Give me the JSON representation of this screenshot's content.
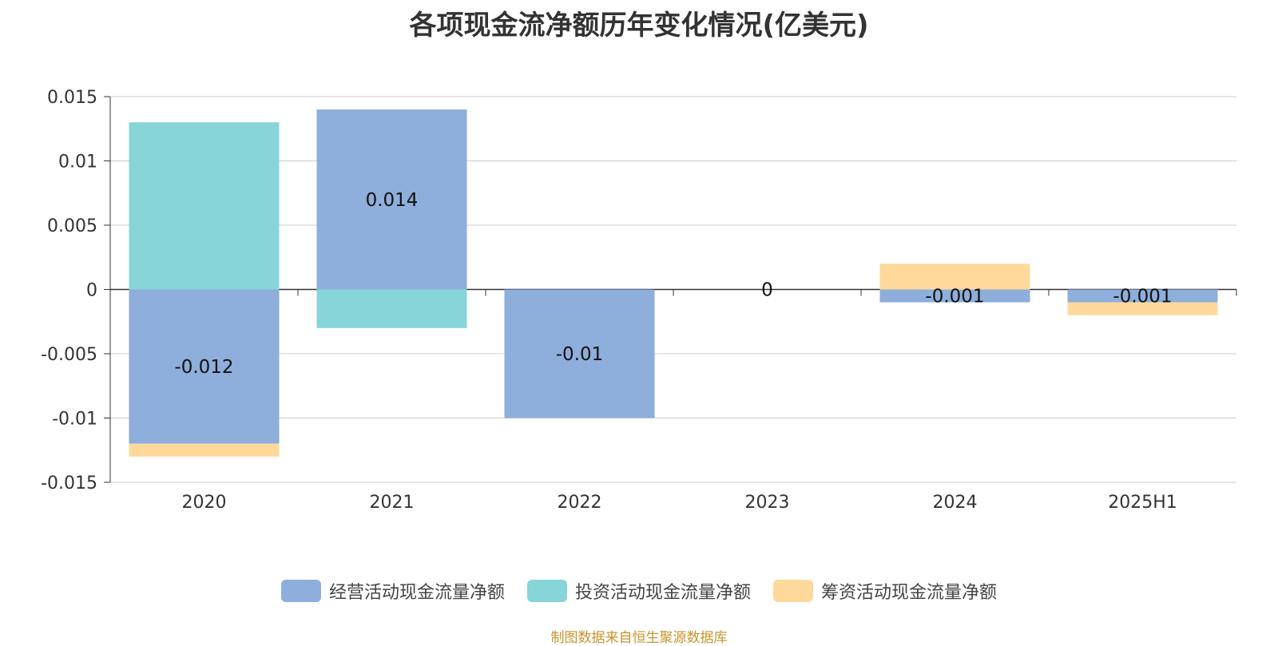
{
  "title": "各项现金流净额历年变化情况(亿美元)",
  "source": "制图数据来自恒生聚源数据库",
  "chart_data": {
    "type": "bar",
    "stacked": true,
    "categories": [
      "2020",
      "2021",
      "2022",
      "2023",
      "2024",
      "2025H1"
    ],
    "series": [
      {
        "name": "经营活动现金流量净额",
        "color": "#8eaedb",
        "values": [
          -0.012,
          0.014,
          -0.01,
          0,
          -0.001,
          -0.001
        ]
      },
      {
        "name": "投资活动现金流量净额",
        "color": "#87d5d8",
        "values": [
          0.013,
          -0.003,
          0,
          0,
          0,
          0
        ]
      },
      {
        "name": "筹资活动现金流量净额",
        "color": "#fed99b",
        "values": [
          -0.001,
          0,
          0,
          0,
          0.002,
          -0.001
        ]
      }
    ],
    "data_labels": [
      "-0.012",
      "0.014",
      "-0.01",
      "0",
      "-0.001",
      "-0.001"
    ],
    "y_ticks": [
      "0.015",
      "0.01",
      "0.005",
      "0",
      "-0.005",
      "-0.01",
      "-0.015"
    ],
    "ylim": [
      -0.015,
      0.015
    ],
    "grid": true,
    "legend_position": "bottom"
  }
}
